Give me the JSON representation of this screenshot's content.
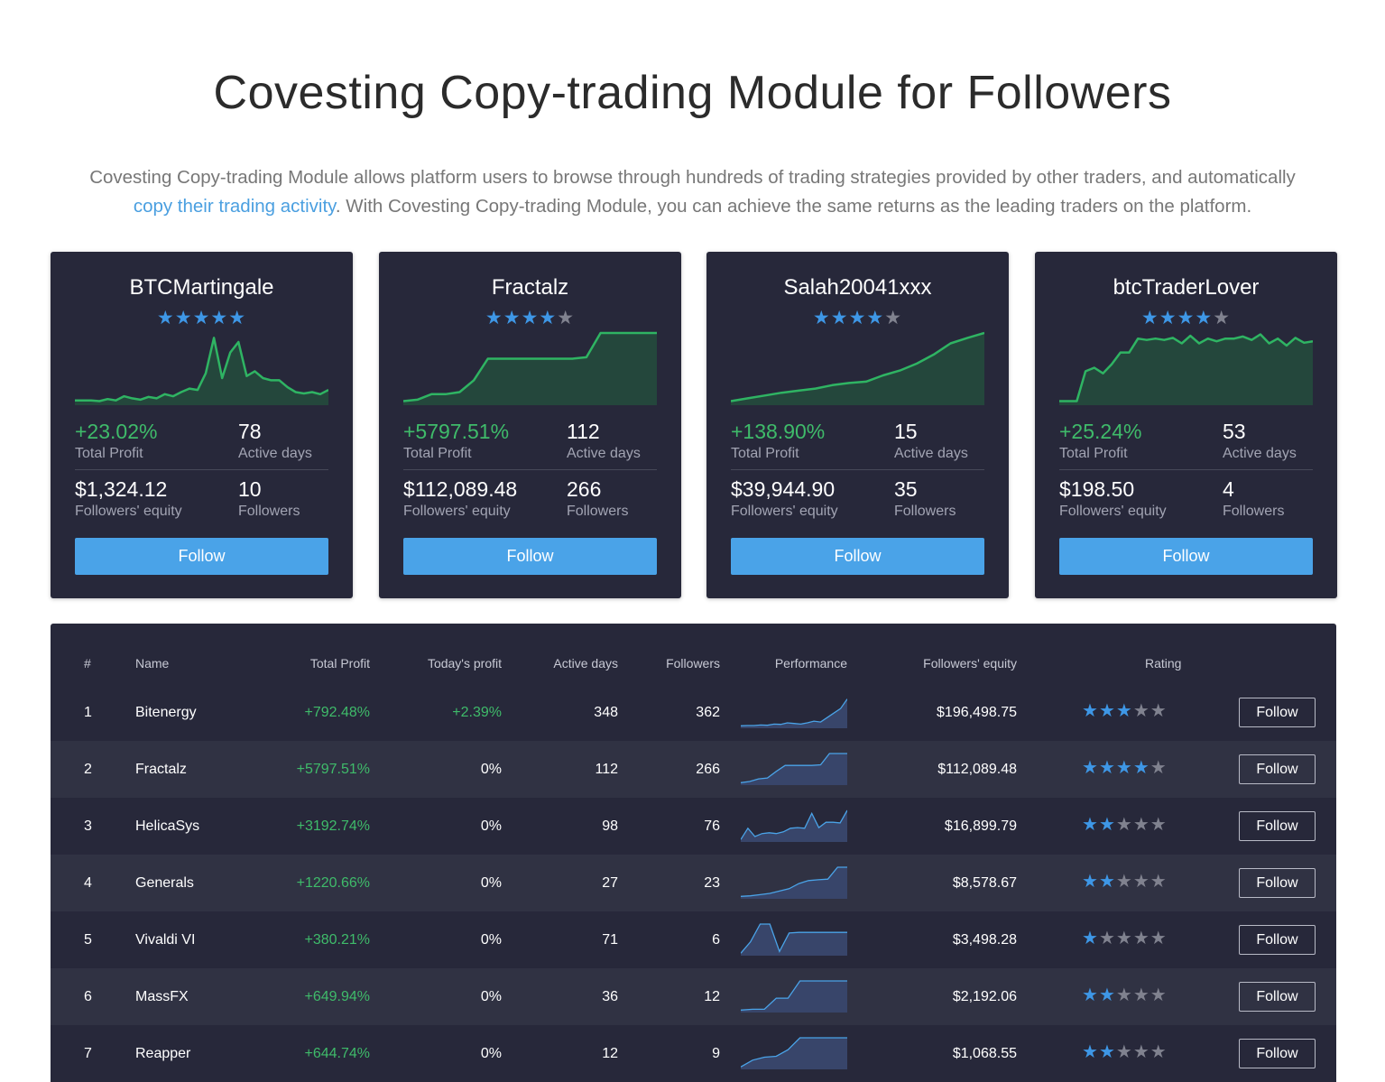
{
  "page": {
    "title": "Covesting Copy-trading Module for Followers",
    "intro_part1": "Covesting Copy-trading Module allows platform users to browse through hundreds of trading strategies provided by other traders, and automatically",
    "intro_link": "copy their trading activity",
    "intro_part2": ". With Covesting Copy-trading Module, you can achieve the same returns as the leading traders on the platform."
  },
  "colors": {
    "card_bg": "#27283a",
    "row_alt_bg": "#303243",
    "accent_blue": "#4aa3e8",
    "star_blue": "#3e97e6",
    "profit_green": "#3fbb6a",
    "chart_fill_green": "#24473c"
  },
  "cards": [
    {
      "name": "BTCMartingale",
      "rating": 5,
      "total_profit": "+23.02%",
      "total_profit_label": "Total Profit",
      "active_days": "78",
      "active_days_label": "Active days",
      "equity": "$1,324.12",
      "equity_label": "Followers' equity",
      "followers": "10",
      "followers_label": "Followers",
      "button": "Follow",
      "chart": [
        3,
        3,
        3,
        2,
        5,
        3,
        9,
        6,
        4,
        8,
        6,
        12,
        9,
        15,
        20,
        18,
        42,
        93,
        35,
        72,
        87,
        38,
        45,
        35,
        32,
        32,
        22,
        15,
        13,
        15,
        12,
        18
      ]
    },
    {
      "name": "Fractalz",
      "rating": 4,
      "total_profit": "+5797.51%",
      "total_profit_label": "Total Profit",
      "active_days": "112",
      "active_days_label": "Active days",
      "equity": "$112,089.48",
      "equity_label": "Followers' equity",
      "followers": "266",
      "followers_label": "Followers",
      "button": "Follow",
      "chart": [
        2,
        4,
        12,
        12,
        15,
        32,
        63,
        63,
        63,
        63,
        63,
        63,
        63,
        65,
        100,
        100,
        100,
        100,
        100
      ]
    },
    {
      "name": "Salah20041xxx",
      "rating": 4,
      "total_profit": "+138.90%",
      "total_profit_label": "Total Profit",
      "active_days": "15",
      "active_days_label": "Active days",
      "equity": "$39,944.90",
      "equity_label": "Followers' equity",
      "followers": "35",
      "followers_label": "Followers",
      "button": "Follow",
      "chart": [
        2,
        6,
        10,
        14,
        17,
        20,
        25,
        28,
        30,
        39,
        46,
        56,
        69,
        85,
        93,
        100
      ]
    },
    {
      "name": "btcTraderLover",
      "rating": 4,
      "total_profit": "+25.24%",
      "total_profit_label": "Total Profit",
      "active_days": "53",
      "active_days_label": "Active days",
      "equity": "$198.50",
      "equity_label": "Followers' equity",
      "followers": "4",
      "followers_label": "Followers",
      "button": "Follow",
      "chart": [
        2,
        2,
        2,
        45,
        50,
        42,
        55,
        72,
        72,
        92,
        90,
        92,
        90,
        93,
        85,
        96,
        85,
        92,
        88,
        92,
        92,
        95,
        90,
        98,
        85,
        92,
        82,
        93,
        86,
        88
      ]
    }
  ],
  "table": {
    "headers": {
      "rank": "#",
      "name": "Name",
      "total_profit": "Total Profit",
      "today_profit": "Today's profit",
      "active_days": "Active days",
      "followers": "Followers",
      "performance": "Performance",
      "equity": "Followers' equity",
      "rating": "Rating"
    },
    "rows": [
      {
        "rank": "1",
        "name": "Bitenergy",
        "total_profit": "+792.48%",
        "today_profit": "+2.39%",
        "today_green": true,
        "active_days": "348",
        "followers": "362",
        "equity": "$196,498.75",
        "rating": 3,
        "button": "Follow",
        "spark": [
          2,
          3,
          3,
          5,
          4,
          8,
          7,
          12,
          10,
          8,
          12,
          18,
          15,
          30,
          45,
          60,
          92
        ]
      },
      {
        "rank": "2",
        "name": "Fractalz",
        "total_profit": "+5797.51%",
        "today_profit": "0%",
        "today_green": false,
        "active_days": "112",
        "followers": "266",
        "equity": "$112,089.48",
        "rating": 4,
        "button": "Follow",
        "spark": [
          2,
          6,
          15,
          18,
          40,
          60,
          60,
          60,
          60,
          62,
          100,
          100,
          100
        ]
      },
      {
        "rank": "3",
        "name": "HelicaSys",
        "total_profit": "+3192.74%",
        "today_profit": "0%",
        "today_green": false,
        "active_days": "98",
        "followers": "76",
        "equity": "$16,899.79",
        "rating": 2,
        "button": "Follow",
        "spark": [
          2,
          40,
          12,
          22,
          25,
          22,
          28,
          40,
          42,
          40,
          90,
          42,
          60,
          60,
          58,
          100
        ]
      },
      {
        "rank": "4",
        "name": "Generals",
        "total_profit": "+1220.66%",
        "today_profit": "0%",
        "today_green": false,
        "active_days": "27",
        "followers": "23",
        "equity": "$8,578.67",
        "rating": 2,
        "button": "Follow",
        "spark": [
          2,
          4,
          8,
          12,
          20,
          28,
          45,
          55,
          58,
          60,
          100,
          100
        ]
      },
      {
        "rank": "5",
        "name": "Vivaldi VI",
        "total_profit": "+380.21%",
        "today_profit": "0%",
        "today_green": false,
        "active_days": "71",
        "followers": "6",
        "equity": "$3,498.28",
        "rating": 1,
        "button": "Follow",
        "spark": [
          2,
          40,
          100,
          100,
          8,
          70,
          72,
          72,
          72,
          72,
          72,
          72
        ]
      },
      {
        "rank": "6",
        "name": "MassFX",
        "total_profit": "+649.94%",
        "today_profit": "0%",
        "today_green": false,
        "active_days": "36",
        "followers": "12",
        "equity": "$2,192.06",
        "rating": 2,
        "button": "Follow",
        "spark": [
          2,
          5,
          5,
          42,
          42,
          100,
          100,
          100,
          100,
          100
        ]
      },
      {
        "rank": "7",
        "name": "Reapper",
        "total_profit": "+644.74%",
        "today_profit": "0%",
        "today_green": false,
        "active_days": "12",
        "followers": "9",
        "equity": "$1,068.55",
        "rating": 2,
        "button": "Follow",
        "spark": [
          2,
          25,
          35,
          38,
          60,
          100,
          100,
          100,
          100,
          100
        ]
      }
    ]
  }
}
